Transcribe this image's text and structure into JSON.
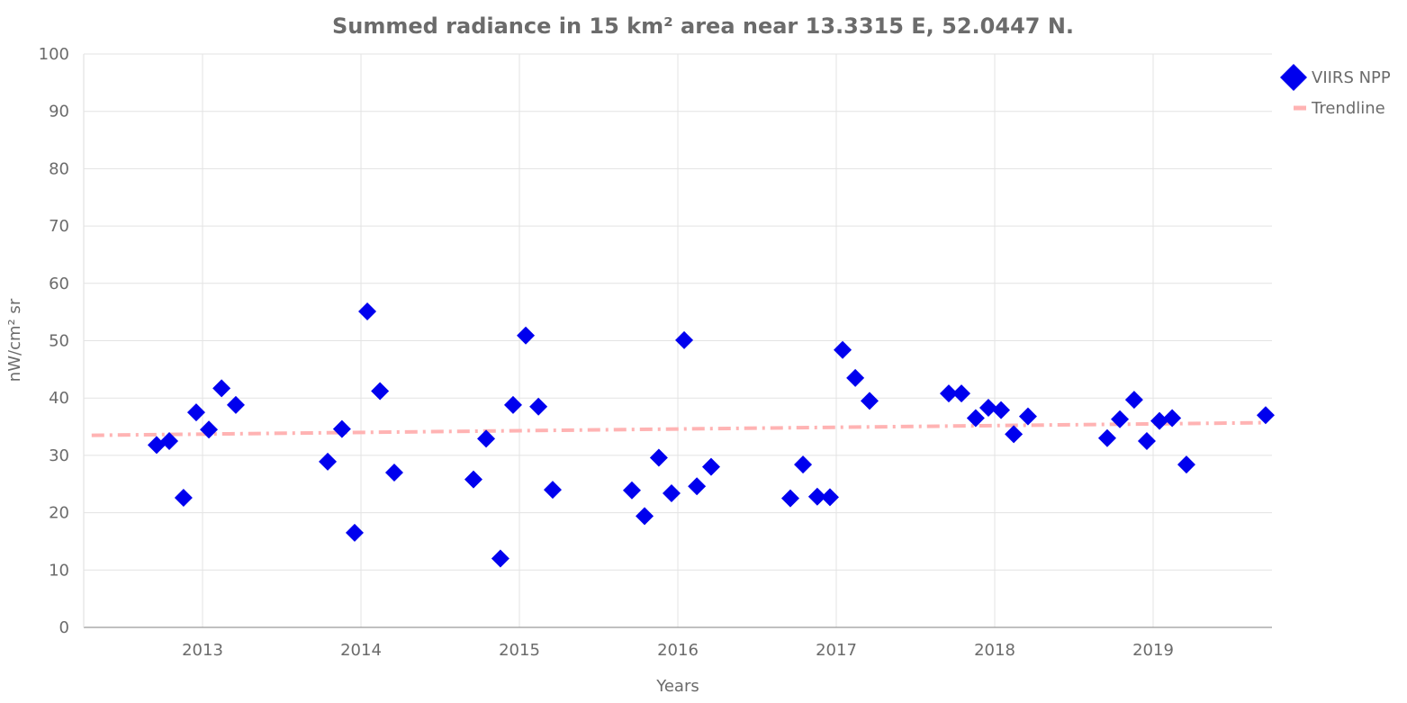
{
  "chart_data": {
    "type": "scatter",
    "title": "Summed radiance in 15 km² area near 13.3315 E, 52.0447 N.",
    "xlabel": "Years",
    "ylabel": "nW/cm² sr",
    "xlim": [
      2012.25,
      2019.75
    ],
    "ylim": [
      0,
      100
    ],
    "x_ticks": [
      "2013",
      "2014",
      "2015",
      "2016",
      "2017",
      "2018",
      "2019"
    ],
    "y_ticks": [
      "0",
      "10",
      "20",
      "30",
      "40",
      "50",
      "60",
      "70",
      "80",
      "90",
      "100"
    ],
    "grid": true,
    "legend_position": "top-right",
    "colors": {
      "series": "#0000ee",
      "trend": "#ffb3b3"
    },
    "series": [
      {
        "name": "VIIRS NPP",
        "marker": "diamond",
        "x": [
          2012.71,
          2012.79,
          2012.88,
          2012.96,
          2013.04,
          2013.12,
          2013.21,
          2013.79,
          2013.88,
          2013.96,
          2014.04,
          2014.12,
          2014.21,
          2014.71,
          2014.79,
          2014.88,
          2014.96,
          2015.04,
          2015.12,
          2015.21,
          2015.71,
          2015.79,
          2015.88,
          2015.96,
          2016.04,
          2016.12,
          2016.21,
          2016.71,
          2016.79,
          2016.88,
          2016.96,
          2017.04,
          2017.12,
          2017.21,
          2017.71,
          2017.79,
          2017.88,
          2017.96,
          2018.04,
          2018.12,
          2018.21,
          2018.71,
          2018.79,
          2018.88,
          2018.96,
          2019.04,
          2019.12,
          2019.21,
          2019.71
        ],
        "y": [
          31.8,
          32.5,
          22.6,
          37.5,
          34.5,
          41.7,
          38.8,
          28.9,
          34.6,
          16.5,
          55.1,
          41.2,
          27.0,
          25.8,
          32.9,
          12.0,
          38.8,
          50.9,
          38.5,
          24.0,
          23.9,
          19.4,
          29.6,
          23.4,
          50.1,
          24.6,
          28.0,
          22.5,
          28.4,
          22.8,
          22.7,
          48.4,
          43.5,
          39.5,
          40.8,
          40.8,
          36.5,
          38.3,
          37.9,
          33.7,
          36.8,
          33.0,
          36.3,
          39.7,
          32.5,
          36.0,
          36.5,
          28.4,
          37.0
        ]
      },
      {
        "name": "Trendline",
        "line_style": "dash-dot",
        "x": [
          2012.3,
          2019.7
        ],
        "y": [
          33.5,
          35.7
        ]
      }
    ]
  }
}
